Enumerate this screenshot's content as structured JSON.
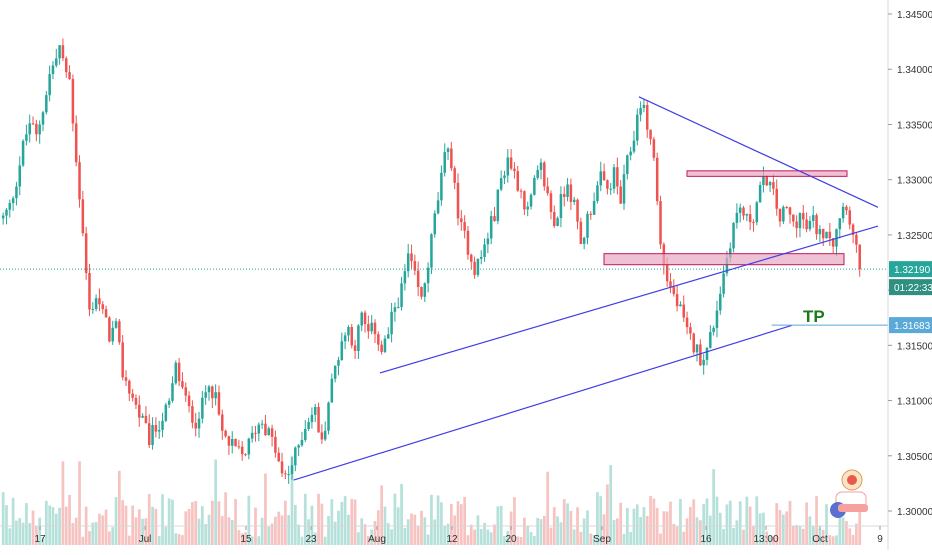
{
  "chart_data": {
    "type": "candlestick",
    "yaxis": {
      "ticks": [
        "1.34500",
        "1.34000",
        "1.33500",
        "1.33000",
        "1.32500",
        "1.32000",
        "1.31500",
        "1.31000",
        "1.30500",
        "1.30000"
      ],
      "tick_values": [
        1.345,
        1.34,
        1.335,
        1.33,
        1.325,
        1.32,
        1.315,
        1.31,
        1.305,
        1.3
      ]
    },
    "xaxis": {
      "ticks": [
        "17",
        "Jul",
        "15",
        "23",
        "Aug",
        "12",
        "20",
        "Sep",
        "16",
        "13:00",
        "Oct",
        "9"
      ]
    },
    "grid": false,
    "series_close_path": [
      [
        0,
        1.3265
      ],
      [
        2,
        1.3275
      ],
      [
        4,
        1.33
      ],
      [
        6,
        1.333
      ],
      [
        8,
        1.3352
      ],
      [
        10,
        1.3338
      ],
      [
        12,
        1.3365
      ],
      [
        14,
        1.3395
      ],
      [
        16,
        1.341
      ],
      [
        17,
        1.342
      ],
      [
        18,
        1.3405
      ],
      [
        20,
        1.339
      ],
      [
        22,
        1.332
      ],
      [
        24,
        1.325
      ],
      [
        26,
        1.318
      ],
      [
        28,
        1.3195
      ],
      [
        30,
        1.3178
      ],
      [
        32,
        1.316
      ],
      [
        34,
        1.3165
      ],
      [
        36,
        1.3125
      ],
      [
        38,
        1.311
      ],
      [
        40,
        1.3095
      ],
      [
        42,
        1.308
      ],
      [
        44,
        1.3065
      ],
      [
        46,
        1.3075
      ],
      [
        48,
        1.3085
      ],
      [
        50,
        1.3095
      ],
      [
        52,
        1.313
      ],
      [
        54,
        1.311
      ],
      [
        56,
        1.309
      ],
      [
        58,
        1.3082
      ],
      [
        60,
        1.3095
      ],
      [
        62,
        1.312
      ],
      [
        64,
        1.31
      ],
      [
        66,
        1.307
      ],
      [
        68,
        1.306
      ],
      [
        70,
        1.3055
      ],
      [
        72,
        1.305
      ],
      [
        74,
        1.306
      ],
      [
        76,
        1.3075
      ],
      [
        78,
        1.3082
      ],
      [
        80,
        1.307
      ],
      [
        82,
        1.3055
      ],
      [
        84,
        1.303
      ],
      [
        86,
        1.3035
      ],
      [
        88,
        1.305
      ],
      [
        90,
        1.307
      ],
      [
        92,
        1.3085
      ],
      [
        94,
        1.309
      ],
      [
        96,
        1.306
      ],
      [
        98,
        1.31
      ],
      [
        100,
        1.313
      ],
      [
        102,
        1.3155
      ],
      [
        104,
        1.3165
      ],
      [
        106,
        1.315
      ],
      [
        108,
        1.3175
      ],
      [
        110,
        1.316
      ],
      [
        112,
        1.3165
      ],
      [
        114,
        1.3145
      ],
      [
        116,
        1.316
      ],
      [
        118,
        1.3185
      ],
      [
        120,
        1.32
      ],
      [
        122,
        1.323
      ],
      [
        124,
        1.321
      ],
      [
        126,
        1.319
      ],
      [
        128,
        1.3225
      ],
      [
        130,
        1.3265
      ],
      [
        132,
        1.33
      ],
      [
        134,
        1.3335
      ],
      [
        136,
        1.329
      ],
      [
        138,
        1.3255
      ],
      [
        140,
        1.324
      ],
      [
        142,
        1.322
      ],
      [
        144,
        1.323
      ],
      [
        146,
        1.325
      ],
      [
        148,
        1.327
      ],
      [
        150,
        1.33
      ],
      [
        152,
        1.332
      ],
      [
        154,
        1.3305
      ],
      [
        156,
        1.329
      ],
      [
        158,
        1.327
      ],
      [
        160,
        1.3295
      ],
      [
        162,
        1.331
      ],
      [
        164,
        1.3285
      ],
      [
        166,
        1.326
      ],
      [
        168,
        1.328
      ],
      [
        170,
        1.33
      ],
      [
        172,
        1.3275
      ],
      [
        174,
        1.324
      ],
      [
        176,
        1.3265
      ],
      [
        178,
        1.3285
      ],
      [
        180,
        1.33
      ],
      [
        182,
        1.329
      ],
      [
        184,
        1.3305
      ],
      [
        186,
        1.328
      ],
      [
        188,
        1.3315
      ],
      [
        190,
        1.334
      ],
      [
        192,
        1.3372
      ],
      [
        194,
        1.335
      ],
      [
        196,
        1.332
      ],
      [
        198,
        1.324
      ],
      [
        200,
        1.321
      ],
      [
        202,
        1.3195
      ],
      [
        204,
        1.318
      ],
      [
        206,
        1.316
      ],
      [
        208,
        1.315
      ],
      [
        210,
        1.314
      ],
      [
        212,
        1.3145
      ],
      [
        214,
        1.317
      ],
      [
        216,
        1.32
      ],
      [
        218,
        1.323
      ],
      [
        220,
        1.326
      ],
      [
        222,
        1.3275
      ],
      [
        224,
        1.3262
      ],
      [
        226,
        1.3268
      ],
      [
        228,
        1.329
      ],
      [
        230,
        1.3302
      ],
      [
        232,
        1.3285
      ],
      [
        234,
        1.3265
      ],
      [
        236,
        1.3272
      ],
      [
        238,
        1.326
      ],
      [
        240,
        1.3268
      ],
      [
        242,
        1.3255
      ],
      [
        244,
        1.3262
      ],
      [
        246,
        1.325
      ],
      [
        248,
        1.3258
      ],
      [
        250,
        1.3245
      ],
      [
        252,
        1.327
      ],
      [
        254,
        1.328
      ],
      [
        256,
        1.3248
      ],
      [
        258,
        1.3219
      ]
    ],
    "current_price": "1.32190",
    "countdown": "01:22:33",
    "target_price": "1.31683",
    "annotation_text": "TP",
    "colors": {
      "up": "#26a69a",
      "down": "#ef5350",
      "trendline": "#3f3fe6",
      "zone_fill": "#e7a6c2",
      "zone_stroke": "#c2185b",
      "current_badge": "#26a69a",
      "target_badge": "#5aa9d6",
      "tp_text": "#1b7a1b"
    },
    "resistance_zone": [
      1.3303,
      1.3308
    ],
    "support_zone": [
      1.3223,
      1.3233
    ],
    "trendlines": [
      {
        "from": [
          192,
          1.3375
        ],
        "to": [
          264,
          1.3275
        ]
      },
      {
        "from": [
          114,
          1.3125
        ],
        "to": [
          264,
          1.3258
        ]
      },
      {
        "from": [
          88,
          1.3028
        ],
        "to": [
          238,
          1.3168
        ]
      }
    ],
    "target_line_from": 232
  }
}
